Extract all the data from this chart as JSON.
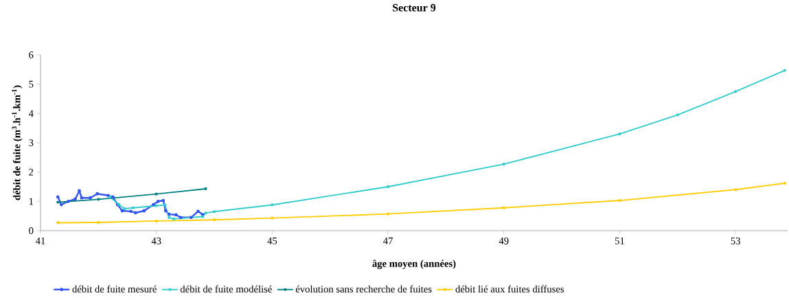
{
  "chart_data": {
    "type": "line",
    "title": "Secteur 9",
    "xlabel": "âge moyen (années)",
    "ylabel": "débit de fuite (m$^{3}$.h$^{-1}$.km$^{-1}$)",
    "xlim": [
      41,
      53.9
    ],
    "ylim": [
      0,
      6
    ],
    "xticks": [
      41,
      43,
      45,
      47,
      49,
      51,
      53
    ],
    "yticks": [
      0,
      1,
      2,
      3,
      4,
      5,
      6
    ],
    "grid": false,
    "legend": "bottom",
    "marker": "circle",
    "line_style": "solid",
    "series": [
      {
        "name": "débit de fuite mesuré",
        "color": "#3355ee",
        "x": [
          41.3,
          41.36,
          41.48,
          41.6,
          41.67,
          41.71,
          41.86,
          41.98,
          42.17,
          42.25,
          42.33,
          42.41,
          42.56,
          42.64,
          42.79,
          42.95,
          43.03,
          43.12,
          43.16,
          43.22,
          43.34,
          43.42,
          43.6,
          43.72,
          43.8
        ],
        "values": [
          1.15,
          0.89,
          1.0,
          1.08,
          1.36,
          1.12,
          1.12,
          1.26,
          1.2,
          1.15,
          0.89,
          0.68,
          0.66,
          0.61,
          0.68,
          0.89,
          1.0,
          1.03,
          0.68,
          0.56,
          0.54,
          0.45,
          0.45,
          0.66,
          0.55
        ]
      },
      {
        "name": "débit de fuite modélisé",
        "color": "#33cccc",
        "x": [
          42.2,
          42.35,
          42.45,
          42.6,
          43.0,
          43.15,
          43.22,
          43.3,
          43.8,
          43.85,
          44,
          45,
          47,
          49,
          51,
          52,
          53,
          53.85
        ],
        "values": [
          1.15,
          0.9,
          0.75,
          0.78,
          0.85,
          0.88,
          0.45,
          0.4,
          0.48,
          0.6,
          0.65,
          0.88,
          1.5,
          2.27,
          3.3,
          3.95,
          4.75,
          5.47
        ]
      },
      {
        "name": "évolution sans recherche de fuites",
        "color": "#008080",
        "x": [
          41.3,
          42,
          43,
          43.85
        ],
        "values": [
          0.97,
          1.07,
          1.25,
          1.43
        ]
      },
      {
        "name": "débit lié aux fuites diffuses",
        "color": "#ffcc00",
        "x": [
          41.3,
          42,
          43,
          44,
          45,
          47,
          49,
          51,
          53,
          53.85
        ],
        "values": [
          0.27,
          0.28,
          0.33,
          0.37,
          0.43,
          0.57,
          0.78,
          1.03,
          1.4,
          1.62
        ]
      }
    ]
  }
}
